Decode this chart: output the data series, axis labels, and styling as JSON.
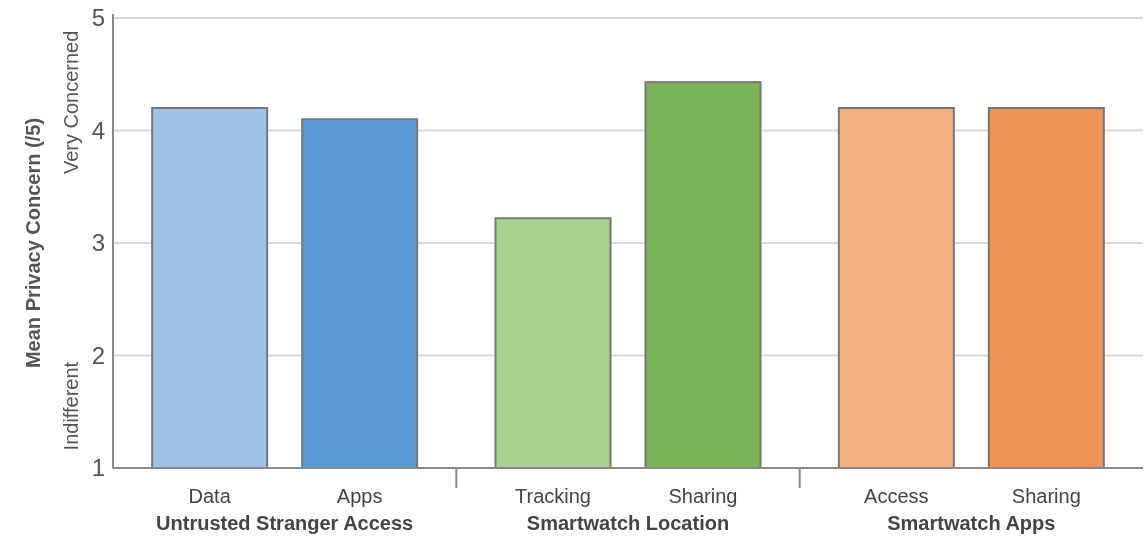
{
  "chart_data": {
    "type": "bar",
    "ylabel": "Mean Privacy Concern (/5)",
    "categories": [
      "Data",
      "Apps",
      "Tracking",
      "Sharing",
      "Access",
      "Sharing"
    ],
    "values": [
      4.2,
      4.1,
      3.22,
      4.43,
      4.2,
      4.2
    ],
    "colors": [
      "#9fc3e7",
      "#5b9bd5",
      "#a9d18e",
      "#7ab555",
      "#f4b183",
      "#f09455"
    ],
    "ylim": [
      1,
      5
    ],
    "yticks": [
      1,
      2,
      3,
      4,
      5
    ],
    "grid": "y",
    "annotations": [
      "Very Concerned",
      "Indifferent",
      "Untrusted Stranger Access",
      "Smartwatch Location",
      "Smartwatch Apps"
    ]
  }
}
